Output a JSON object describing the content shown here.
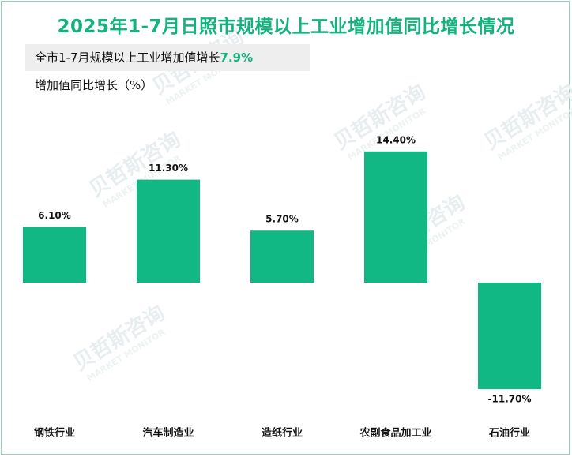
{
  "chart_data": {
    "type": "bar",
    "title": "2025年1-7月日照市规模以上工业增加值同比增长情况",
    "subtitle_label": "全市1-7月规模以上工业增加值增长",
    "subtitle_value": "7.9%",
    "ylabel": "增加值同比增长（%）",
    "categories": [
      "钢铁行业",
      "汽车制造业",
      "造纸行业",
      "农副食品加工业",
      "石油行业"
    ],
    "values": [
      6.1,
      11.3,
      5.7,
      14.4,
      -11.7
    ],
    "value_labels": [
      "6.10%",
      "11.30%",
      "5.70%",
      "14.40%",
      "-11.70%"
    ],
    "ylim": [
      -11.7,
      14.4
    ],
    "grid": false,
    "bar_color": "#12b883"
  },
  "watermark": {
    "cn": "贝哲斯咨询",
    "en": "MARKET MONITOR"
  }
}
